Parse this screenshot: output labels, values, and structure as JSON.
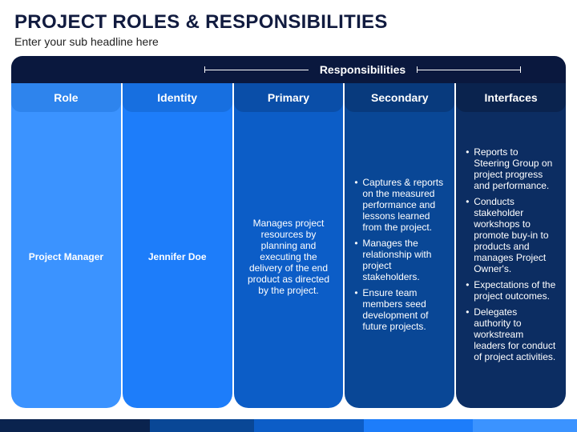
{
  "title": "PROJECT ROLES & RESPONSIBILITIES",
  "subtitle": "Enter your sub headline here",
  "band_label": "Responsibilities",
  "band_bg": "#0a183e",
  "columns": [
    {
      "header": "Role",
      "head_bg": "#2e84ed",
      "body_bg": "#3b93ff",
      "content_type": "single",
      "text": "Project Manager"
    },
    {
      "header": "Identity",
      "head_bg": "#176fe0",
      "body_bg": "#1d7dfa",
      "content_type": "single",
      "text": "Jennifer Doe"
    },
    {
      "header": "Primary",
      "head_bg": "#0a4ea8",
      "body_bg": "#0c5dc7",
      "content_type": "para",
      "text": "Manages project resources by planning and executing the delivery of the end product as directed by the project."
    },
    {
      "header": "Secondary",
      "head_bg": "#083a7d",
      "body_bg": "#094796",
      "content_type": "list",
      "items": [
        "Captures & reports on the measured performance and lessons learned from the project.",
        "Manages the relationship with project stakeholders.",
        "Ensure team members seed development of future projects."
      ]
    },
    {
      "header": "Interfaces",
      "head_bg": "#0a234e",
      "body_bg": "#0c2d62",
      "content_type": "list",
      "items": [
        "Reports to Steering Group on project progress and performance.",
        "Conducts stakeholder workshops to promote buy-in to products and manages Project Owner's.",
        "Expectations of the project outcomes.",
        "Delegates authority to workstream leaders for conduct of project activities."
      ]
    }
  ],
  "footer_colors": [
    "#0a234e",
    "#094796",
    "#0c5dc7",
    "#1d7dfa",
    "#3b93ff"
  ],
  "footer_widths": [
    26,
    18,
    19,
    19,
    18
  ]
}
